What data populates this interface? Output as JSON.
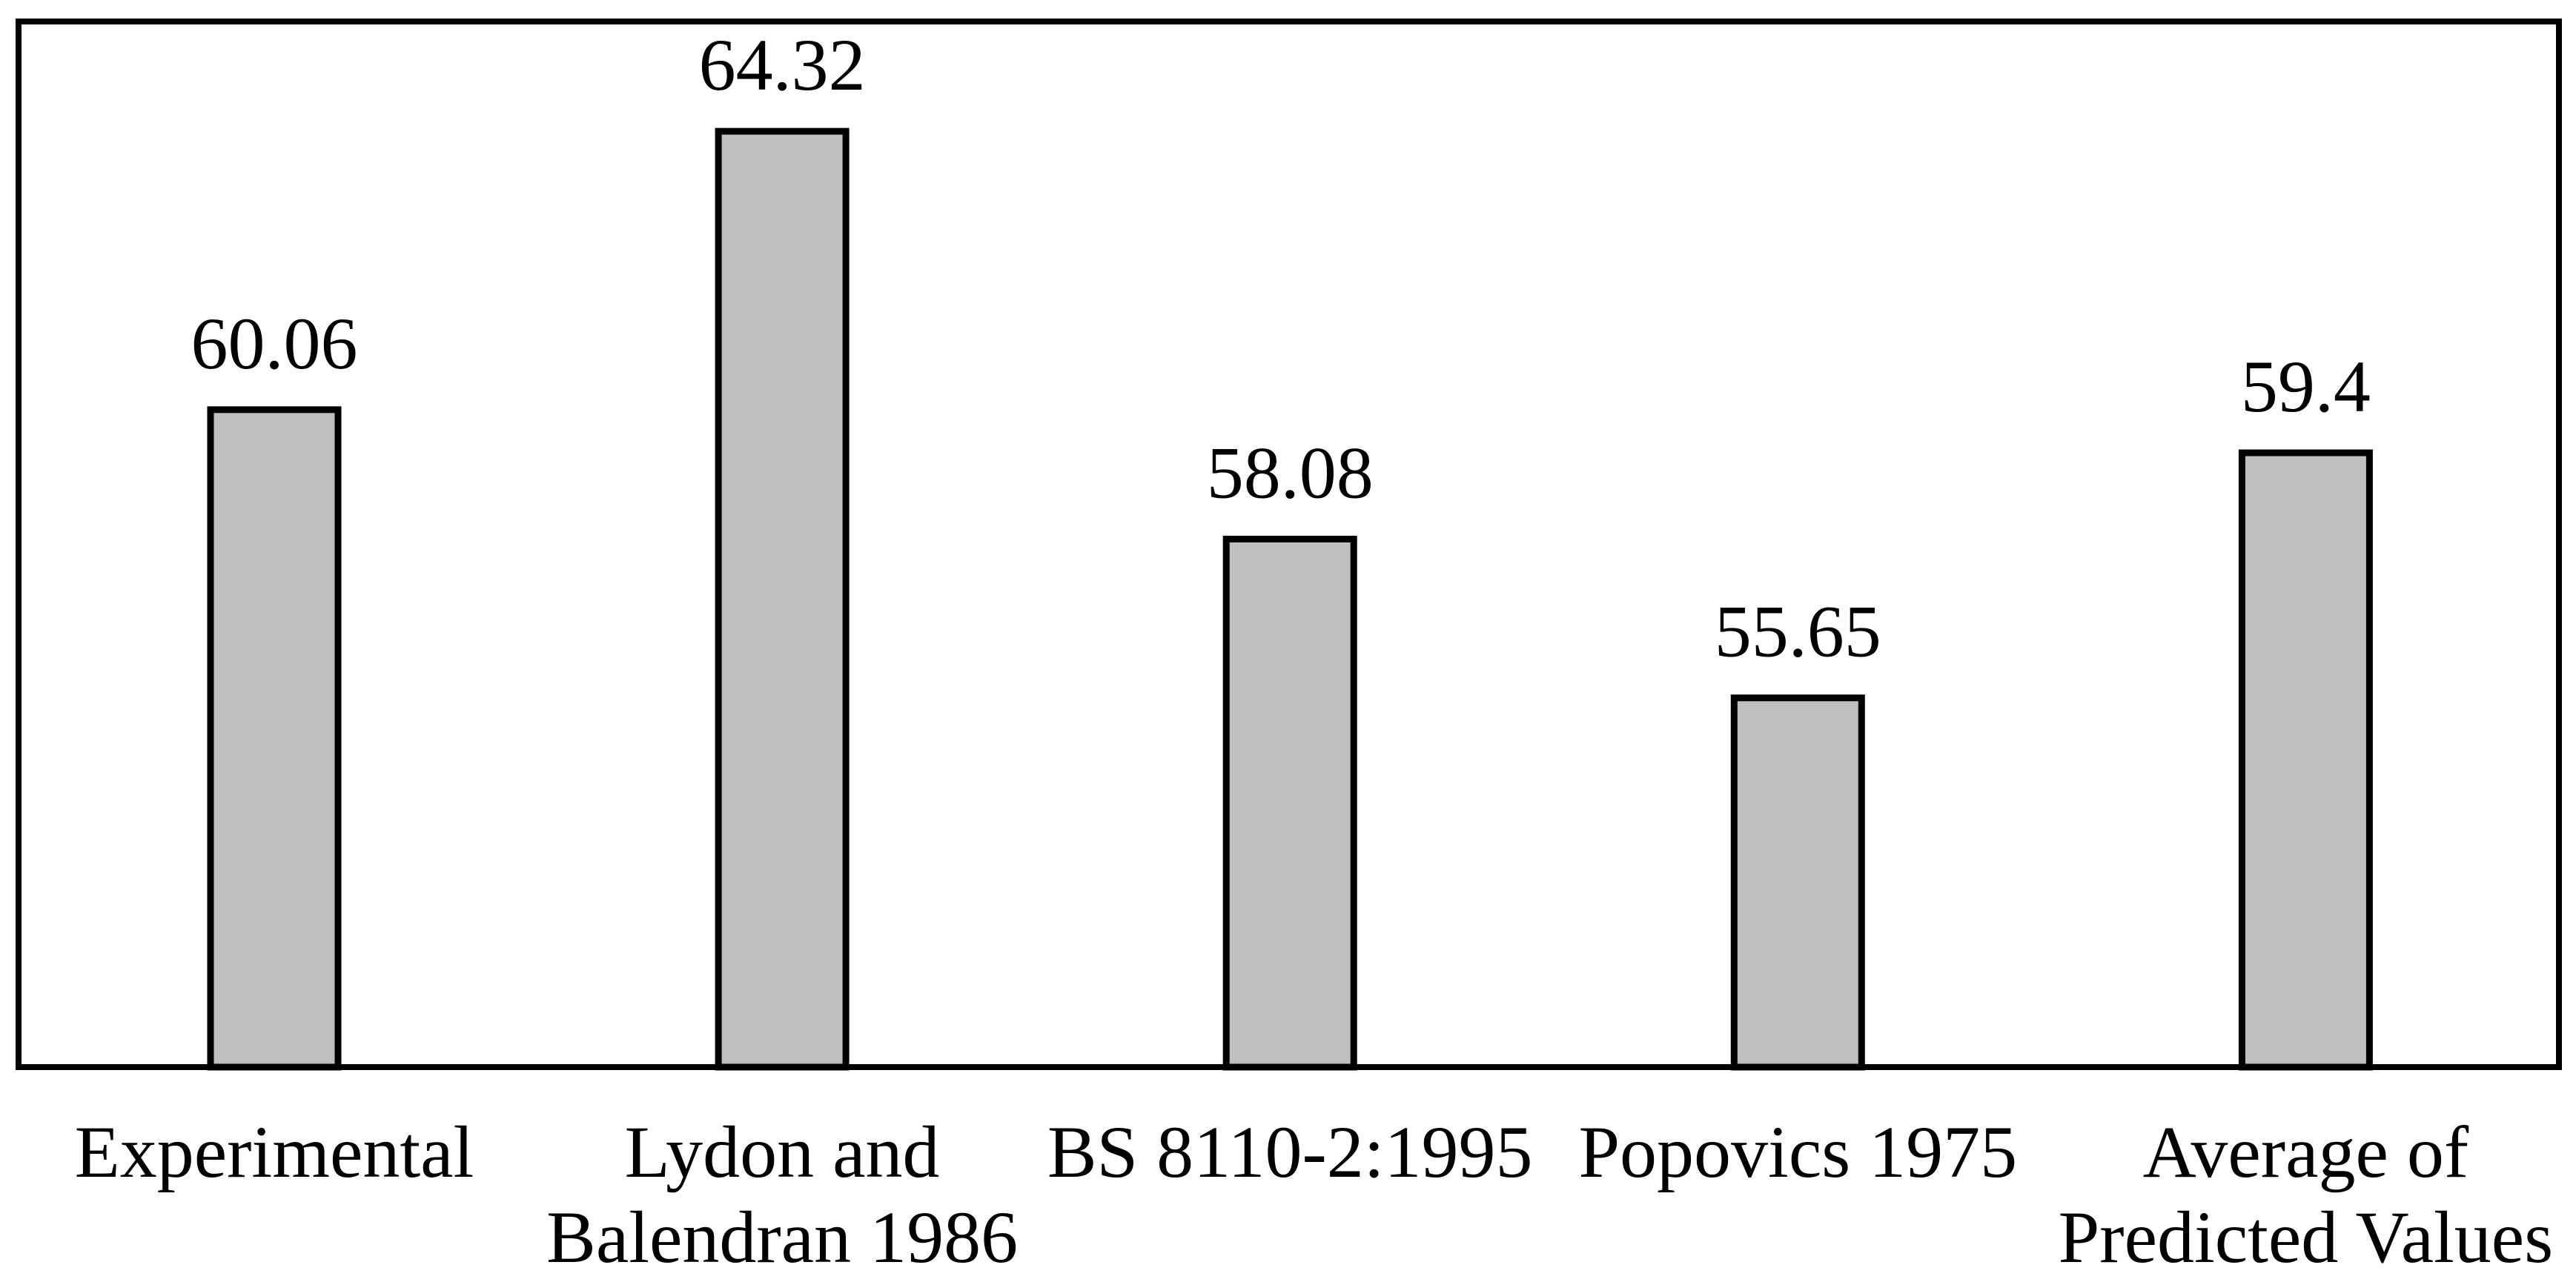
{
  "chart_data": {
    "type": "bar",
    "title": "",
    "xlabel": "",
    "ylabel": "",
    "categories": [
      "Experimental",
      "Lydon and Balendran 1986",
      "BS 8110-2:1995",
      "Popovics 1975",
      "Average of Predicted Values"
    ],
    "categories_lines": [
      [
        "Experimental"
      ],
      [
        "Lydon and",
        "Balendran 1986"
      ],
      [
        "BS 8110-2:1995"
      ],
      [
        "Popovics 1975"
      ],
      [
        "Average of",
        "Predicted Values"
      ]
    ],
    "values": [
      60.06,
      64.32,
      58.08,
      55.65,
      59.4
    ],
    "value_labels": [
      "60.06",
      "64.32",
      "58.08",
      "55.65",
      "59.4"
    ],
    "ylim": [
      50,
      66
    ],
    "grid": false,
    "legend": false,
    "axis_ticks": false,
    "bar_fill": "#bfbfbf",
    "bar_stroke": "#000000",
    "frame_stroke": "#000000",
    "text_color": "#000000",
    "background": "#ffffff"
  }
}
